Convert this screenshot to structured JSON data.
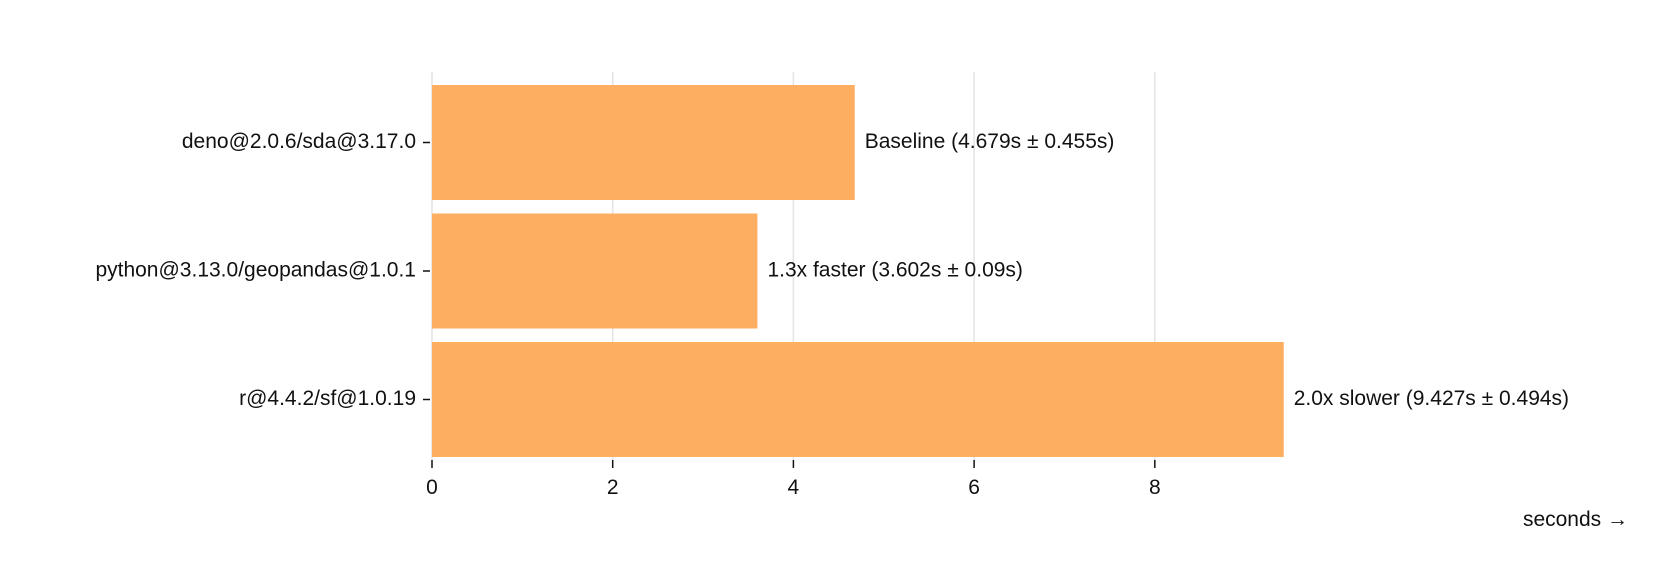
{
  "chart_data": {
    "type": "bar",
    "orientation": "horizontal",
    "title": "",
    "xlabel": "seconds →",
    "ylabel": "",
    "categories": [
      "deno@2.0.6/sda@3.17.0",
      "python@3.13.0/geopandas@1.0.1",
      "r@4.4.2/sf@1.0.19"
    ],
    "values": [
      4.679,
      3.602,
      9.427
    ],
    "bar_labels": [
      "Baseline (4.679s ± 0.455s)",
      "1.3x faster (3.602s ± 0.09s)",
      "2.0x slower (9.427s ± 0.494s)"
    ],
    "xticks": [
      0,
      2,
      4,
      6,
      8
    ],
    "xlim": [
      0,
      9.427
    ],
    "grid": true,
    "legend": "none",
    "bar_color": "#fdae61"
  }
}
